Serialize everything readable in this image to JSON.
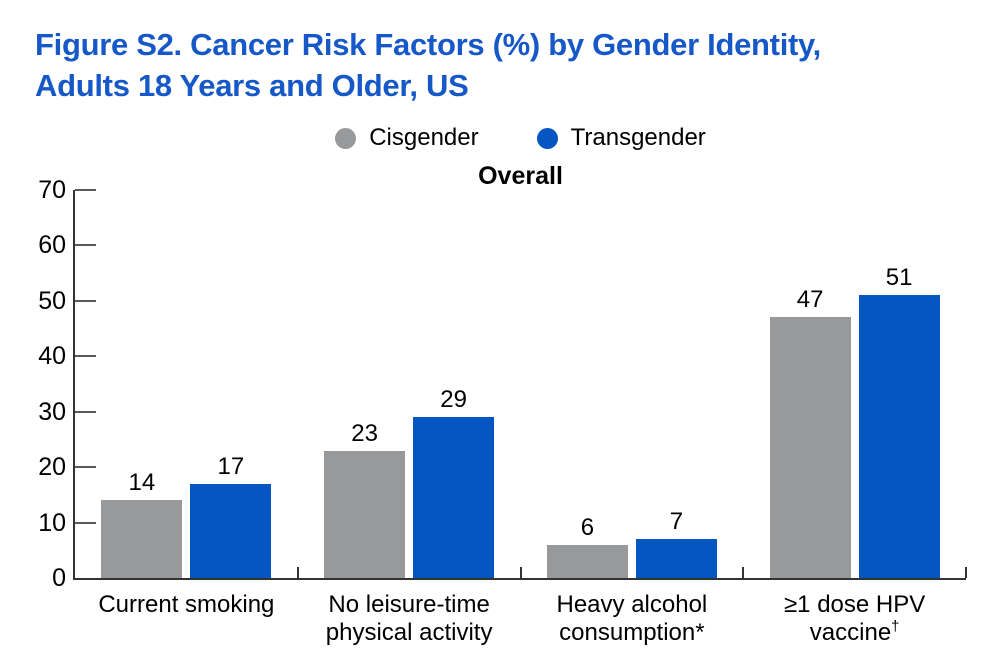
{
  "figure": {
    "title_line1": "Figure S2. Cancer Risk Factors (%) by Gender Identity,",
    "title_line2": "Adults 18 Years and Older, US"
  },
  "legend": {
    "items": [
      {
        "label": "Cisgender",
        "color": "#97999b"
      },
      {
        "label": "Transgender",
        "color": "#0556c2"
      }
    ]
  },
  "chart_data": {
    "type": "bar",
    "subtitle": "Overall",
    "categories": [
      "Current smoking",
      "No leisure-time physical activity",
      "Heavy alcohol consumption*",
      "≥1 dose HPV vaccine†"
    ],
    "category_label_lines": [
      [
        "Current smoking"
      ],
      [
        "No leisure-time",
        "physical activity"
      ],
      [
        "Heavy alcohol",
        "consumption*"
      ],
      [
        "≥1 dose HPV vaccine†"
      ]
    ],
    "series": [
      {
        "name": "Cisgender",
        "color": "#97999b",
        "values": [
          14,
          23,
          6,
          47
        ]
      },
      {
        "name": "Transgender",
        "color": "#0556c2",
        "values": [
          17,
          29,
          7,
          51
        ]
      }
    ],
    "ylim": [
      0,
      70
    ],
    "yticks": [
      0,
      10,
      20,
      30,
      40,
      50,
      60,
      70
    ],
    "ylabel": "",
    "xlabel": "",
    "grid": false,
    "legend_position": "top-center",
    "bar_value_labels": true
  },
  "colors": {
    "title": "#1658c8",
    "cisgender": "#97999b",
    "transgender": "#0556c2",
    "axis": "#333333",
    "text": "#000000",
    "background": "#ffffff"
  }
}
